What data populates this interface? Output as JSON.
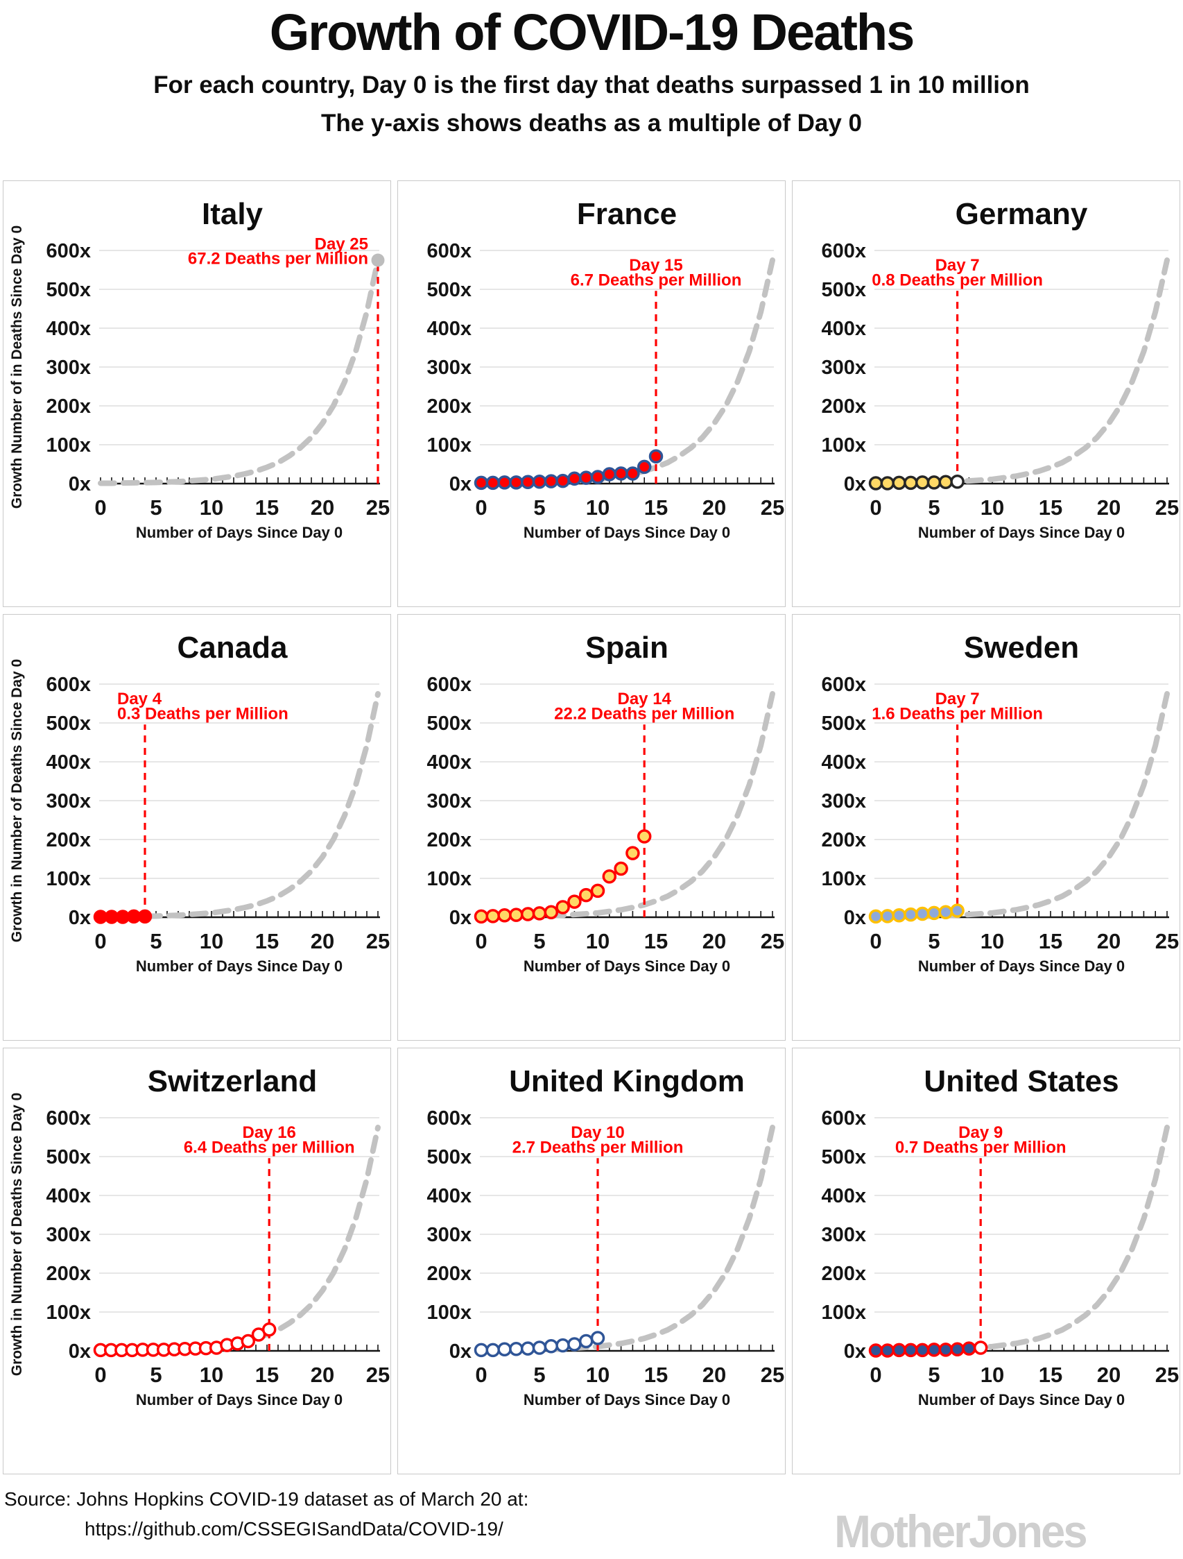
{
  "header": {
    "title": "Growth of COVID-19 Deaths",
    "subtitle_line1": "For each country, Day 0 is the first day that deaths surpassed 1 in 10 million",
    "subtitle_line2": "The y-axis shows deaths as a multiple of Day 0"
  },
  "footer": {
    "source_line1": "Source: Johns Hopkins COVID-19 dataset as of March 20 at:",
    "source_line2": "https://github.com/CSSEGISandData/COVID-19/",
    "logo_text": "MotherJones"
  },
  "colors": {
    "annotation_red": "#FF0000",
    "reference_gray": "#C2C2C2",
    "gridline": "#DEDEDE",
    "axis": "#141414",
    "panel_border": "#C9C9C9",
    "logo_gray": "#CFCFCF"
  },
  "chart_data": {
    "type": "scatter",
    "title": "Growth of COVID-19 Deaths",
    "xlabel": "Number of Days Since Day 0",
    "xlim": [
      0,
      25
    ],
    "ylim": [
      0,
      600
    ],
    "x_ticks": [
      0,
      5,
      10,
      15,
      20,
      25
    ],
    "y_ticks": [
      0,
      100,
      200,
      300,
      400,
      500,
      600
    ],
    "y_tick_labels": [
      "0x",
      "100x",
      "200x",
      "300x",
      "400x",
      "500x",
      "600x"
    ],
    "grid": "horizontal",
    "reference_curve": {
      "name": "Italy growth curve (shown dashed in every panel)",
      "style": "dashed",
      "days": [
        0,
        1,
        2,
        3,
        4,
        5,
        6,
        7,
        8,
        9,
        10,
        11,
        12,
        13,
        14,
        15,
        16,
        17,
        18,
        19,
        20,
        21,
        22,
        23,
        24,
        25
      ],
      "values": [
        1,
        1,
        1.5,
        2,
        2.5,
        3,
        4,
        5,
        7,
        9,
        11,
        15,
        19,
        25,
        32,
        42,
        54,
        71,
        92,
        119,
        155,
        201,
        262,
        340,
        442,
        575
      ]
    },
    "panels": [
      {
        "id": "italy",
        "country": "Italy",
        "ylabel": "Growth Number of in Deaths Since Day 0",
        "annotation": {
          "line1": "Day 25",
          "line2": "67.2 Deaths per Million",
          "day": 25,
          "align": "right",
          "line_top_value": 575,
          "text_value_1": 603,
          "text_value_2": 565
        },
        "end_dot": {
          "day": 25,
          "value": 575
        },
        "series": {
          "days": [],
          "values": []
        },
        "marker": {
          "fill": "",
          "stroke": ""
        }
      },
      {
        "id": "france",
        "country": "France",
        "annotation": {
          "line1": "Day 15",
          "line2": "6.7 Deaths per Million",
          "day": 15,
          "align": "center"
        },
        "series": {
          "days": [
            0,
            1,
            2,
            3,
            4,
            5,
            6,
            7,
            8,
            9,
            10,
            11,
            12,
            13,
            14,
            15
          ],
          "values": [
            2,
            2,
            3,
            3,
            4,
            5,
            6,
            7,
            13,
            15,
            17,
            24,
            26,
            26,
            43,
            70
          ]
        },
        "marker": {
          "fill": "#FF0000",
          "stroke": "#2F5597"
        }
      },
      {
        "id": "germany",
        "country": "Germany",
        "annotation": {
          "line1": "Day 7",
          "line2": "0.8 Deaths per Million",
          "day": 7,
          "align": "center"
        },
        "series": {
          "days": [
            0,
            1,
            2,
            3,
            4,
            5,
            6,
            7
          ],
          "values": [
            1,
            1,
            2,
            2,
            3,
            3,
            4,
            5
          ]
        },
        "marker": {
          "fill": "#FFD966",
          "stroke": "#262626",
          "last_fill": "#FFFFFF"
        }
      },
      {
        "id": "canada",
        "country": "Canada",
        "ylabel": "Growth in Number of Deaths Since Day 0",
        "annotation": {
          "line1": "Day 4",
          "line2": "0.3 Deaths per Million",
          "day": 4,
          "align": "left"
        },
        "series": {
          "days": [
            0,
            1,
            2,
            3,
            4
          ],
          "values": [
            1,
            1,
            1,
            2,
            2
          ]
        },
        "marker": {
          "fill": "#FF0000",
          "stroke": "#FF0000"
        }
      },
      {
        "id": "spain",
        "country": "Spain",
        "annotation": {
          "line1": "Day 14",
          "line2": "22.2 Deaths per Million",
          "day": 14,
          "align": "center"
        },
        "series": {
          "days": [
            0,
            1,
            2,
            3,
            4,
            5,
            6,
            7,
            8,
            9,
            10,
            11,
            12,
            13,
            14
          ],
          "values": [
            2,
            3,
            5,
            6,
            8,
            10,
            13,
            26,
            40,
            57,
            68,
            105,
            125,
            165,
            208
          ]
        },
        "marker": {
          "fill": "#FFD966",
          "stroke": "#FF0000"
        }
      },
      {
        "id": "sweden",
        "country": "Sweden",
        "annotation": {
          "line1": "Day 7",
          "line2": "1.6 Deaths per Million",
          "day": 7,
          "align": "center"
        },
        "series": {
          "days": [
            0,
            1,
            2,
            3,
            4,
            5,
            6,
            7
          ],
          "values": [
            2,
            3,
            5,
            7,
            9,
            11,
            13,
            17
          ]
        },
        "marker": {
          "fill": "#8EA9DB",
          "stroke": "#FFC000"
        }
      },
      {
        "id": "switzerland",
        "country": "Switzerland",
        "ylabel": "Growth in Number of Deaths Since Day 0",
        "day_scale": 0.95,
        "annotation": {
          "line1": "Day 16",
          "line2": "6.4 Deaths per Million",
          "day": 16,
          "align": "center"
        },
        "series": {
          "days": [
            0,
            1,
            2,
            3,
            4,
            5,
            6,
            7,
            8,
            9,
            10,
            11,
            12,
            13,
            14,
            15,
            16
          ],
          "values": [
            2,
            2,
            2,
            2,
            3,
            3,
            3,
            4,
            5,
            6,
            7,
            8,
            15,
            19,
            25,
            42,
            55
          ]
        },
        "marker": {
          "fill": "#FFFFFF",
          "stroke": "#FF0000"
        }
      },
      {
        "id": "united-kingdom",
        "country": "United Kingdom",
        "annotation": {
          "line1": "Day 10",
          "line2": "2.7 Deaths per Million",
          "day": 10,
          "align": "center"
        },
        "series": {
          "days": [
            0,
            1,
            2,
            3,
            4,
            5,
            6,
            7,
            8,
            9,
            10
          ],
          "values": [
            2,
            2,
            4,
            5,
            6,
            8,
            12,
            14,
            17,
            25,
            33
          ]
        },
        "marker": {
          "fill": "#FFFFFF",
          "stroke": "#2F5597"
        }
      },
      {
        "id": "united-states",
        "country": "United States",
        "annotation": {
          "line1": "Day 9",
          "line2": "0.7 Deaths per Million",
          "day": 9,
          "align": "center"
        },
        "series": {
          "days": [
            0,
            1,
            2,
            3,
            4,
            5,
            6,
            7,
            8,
            9
          ],
          "values": [
            1,
            1,
            2,
            2,
            2,
            3,
            3,
            4,
            6,
            8
          ]
        },
        "marker": {
          "fill": "#2F5496",
          "stroke": "#FF0000",
          "last_fill": "#FFFFFF"
        }
      }
    ]
  }
}
